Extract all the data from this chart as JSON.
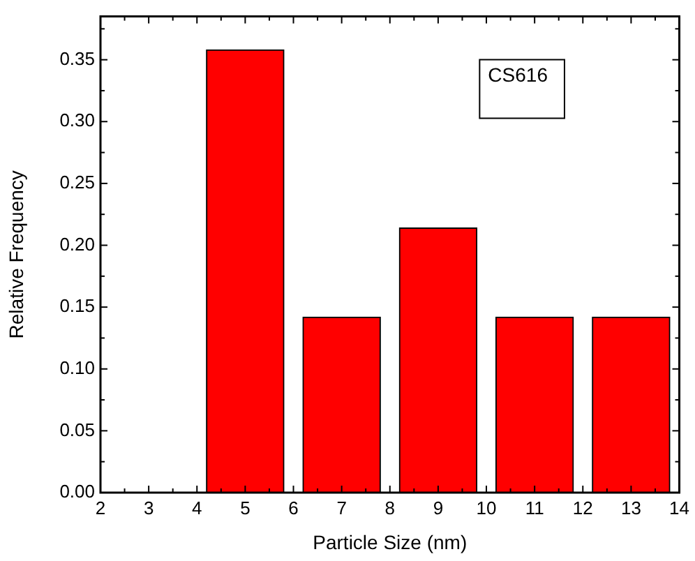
{
  "chart_data": {
    "type": "bar",
    "xlabel": "Particle Size (nm)",
    "ylabel": "Relative Frequency",
    "x": [
      5,
      7,
      9,
      11,
      13
    ],
    "values": [
      0.358,
      0.142,
      0.214,
      0.142,
      0.142
    ],
    "color": "#ff0000",
    "xlim": [
      2,
      14
    ],
    "xticks": [
      2,
      3,
      4,
      5,
      6,
      7,
      8,
      9,
      10,
      11,
      12,
      13,
      14
    ],
    "ylim": [
      0,
      0.385
    ],
    "yticks": [
      {
        "value": 0,
        "label": "0.00"
      },
      {
        "value": 0.05,
        "label": "0.05"
      },
      {
        "value": 0.1,
        "label": "0.10"
      },
      {
        "value": 0.15,
        "label": "0.15"
      },
      {
        "value": 0.2,
        "label": "0.20"
      },
      {
        "value": 0.25,
        "label": "0.25"
      },
      {
        "value": 0.3,
        "label": "0.30"
      },
      {
        "value": 0.35,
        "label": "0.35"
      }
    ],
    "grid": false,
    "legend": false,
    "annotations": [
      "CS616"
    ]
  }
}
